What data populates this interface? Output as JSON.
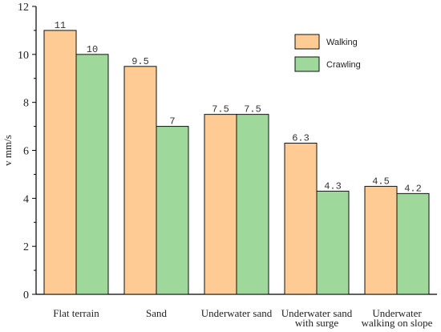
{
  "chart_data": {
    "type": "bar",
    "title": "",
    "xlabel": "",
    "ylabel": "v mm/s",
    "ylim": [
      0,
      12
    ],
    "yticks": [
      0,
      2,
      4,
      6,
      8,
      10,
      12
    ],
    "grid": false,
    "legend_position": "top-right",
    "categories": [
      [
        "Flat terrain"
      ],
      [
        "Sand"
      ],
      [
        "Underwater sand"
      ],
      [
        "Underwater sand",
        "with surge"
      ],
      [
        "Underwater",
        "walking on slope"
      ]
    ],
    "series": [
      {
        "name": "Walking",
        "color": "#fdcb93",
        "values": [
          11,
          9.5,
          7.5,
          6.3,
          4.5
        ],
        "labels": [
          "11",
          "9.5",
          "7.5",
          "6.3",
          "4.5"
        ]
      },
      {
        "name": "Crawling",
        "color": "#9ed89b",
        "values": [
          10,
          7,
          7.5,
          4.3,
          4.2
        ],
        "labels": [
          "10",
          "7",
          "7.5",
          "4.3",
          "4.2"
        ]
      }
    ]
  }
}
